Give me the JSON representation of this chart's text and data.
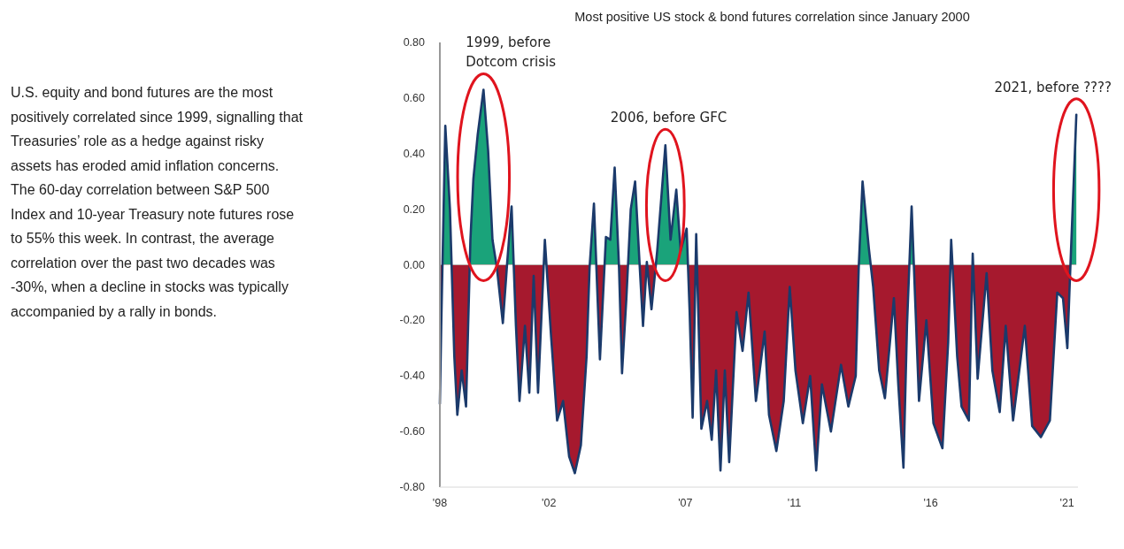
{
  "chart_data": {
    "type": "area",
    "title": "Most positive US stock & bond futures correlation since January 2000",
    "annotations": [
      "U.S. equity and bond futures are the most positively correlated since 1999, signalling that Treasuries’ role as a hedge against risky assets has eroded amid inflation concerns. The 60-day correlation between S&P 500 Index and 10-year Treasury note futures rose to 55% this week. In contrast, the average correlation over the past two decades was -30%, when a decline in stocks was typically accompanied by a rally in bonds.",
      {
        "text": "1999, before\nDotcom crisis",
        "x": 1999.6,
        "y": 0.63
      },
      {
        "text": "2006, before GFC",
        "x": 2006.27,
        "y": 0.43
      },
      {
        "text": "2021, before ????",
        "x": 2021.34,
        "y": 0.54
      }
    ],
    "x": [
      1998.0,
      1998.05,
      1998.2,
      1998.37,
      1998.53,
      1998.64,
      1998.8,
      1998.96,
      1999.12,
      1999.23,
      1999.39,
      1999.6,
      1999.77,
      1999.93,
      2000.09,
      2000.31,
      2000.47,
      2000.63,
      2000.79,
      2000.92,
      2001.12,
      2001.28,
      2001.44,
      2001.6,
      2001.85,
      2002.08,
      2002.3,
      2002.52,
      2002.74,
      2002.95,
      2003.17,
      2003.38,
      2003.49,
      2003.65,
      2003.87,
      2004.09,
      2004.25,
      2004.41,
      2004.57,
      2004.68,
      2004.84,
      2005.0,
      2005.16,
      2005.32,
      2005.45,
      2005.59,
      2005.76,
      2005.97,
      2006.27,
      2006.46,
      2006.67,
      2006.83,
      2007.05,
      2007.16,
      2007.27,
      2007.4,
      2007.59,
      2007.8,
      2007.97,
      2008.13,
      2008.29,
      2008.45,
      2008.61,
      2008.88,
      2009.1,
      2009.32,
      2009.59,
      2009.91,
      2010.07,
      2010.34,
      2010.61,
      2010.83,
      2011.04,
      2011.31,
      2011.58,
      2011.8,
      2012.01,
      2012.34,
      2012.71,
      2012.98,
      2013.25,
      2013.36,
      2013.5,
      2013.73,
      2013.89,
      2014.11,
      2014.32,
      2014.65,
      2014.81,
      2015.0,
      2015.13,
      2015.3,
      2015.57,
      2015.84,
      2016.1,
      2016.43,
      2016.64,
      2016.75,
      2016.97,
      2017.13,
      2017.4,
      2017.54,
      2017.72,
      2018.05,
      2018.26,
      2018.53,
      2018.75,
      2019.02,
      2019.45,
      2019.72,
      2020.04,
      2020.37,
      2020.64,
      2020.85,
      2021.01,
      2021.12,
      2021.34
    ],
    "series": [
      {
        "color": "#1b3a6b",
        "values": [
          -0.5,
          -0.22,
          0.5,
          0.2,
          -0.33,
          -0.54,
          -0.38,
          -0.51,
          0.09,
          0.31,
          0.47,
          0.63,
          0.41,
          0.09,
          -0.01,
          -0.21,
          0.01,
          0.21,
          -0.22,
          -0.49,
          -0.22,
          -0.46,
          -0.04,
          -0.46,
          0.09,
          -0.26,
          -0.56,
          -0.49,
          -0.69,
          -0.75,
          -0.65,
          -0.33,
          -0.01,
          0.22,
          -0.34,
          0.1,
          0.09,
          0.35,
          -0.01,
          -0.39,
          -0.12,
          0.2,
          0.3,
          0.01,
          -0.22,
          0.01,
          -0.16,
          0.05,
          0.43,
          0.09,
          0.27,
          0.05,
          0.13,
          -0.17,
          -0.55,
          0.11,
          -0.59,
          -0.49,
          -0.63,
          -0.38,
          -0.74,
          -0.38,
          -0.71,
          -0.17,
          -0.31,
          -0.1,
          -0.49,
          -0.24,
          -0.54,
          -0.67,
          -0.49,
          -0.08,
          -0.38,
          -0.57,
          -0.4,
          -0.74,
          -0.43,
          -0.6,
          -0.36,
          -0.51,
          -0.4,
          -0.01,
          0.3,
          0.06,
          -0.08,
          -0.38,
          -0.48,
          -0.12,
          -0.43,
          -0.73,
          -0.22,
          0.21,
          -0.49,
          -0.2,
          -0.57,
          -0.66,
          -0.28,
          0.09,
          -0.33,
          -0.51,
          -0.56,
          0.04,
          -0.41,
          -0.03,
          -0.38,
          -0.53,
          -0.22,
          -0.56,
          -0.22,
          -0.58,
          -0.62,
          -0.56,
          -0.1,
          -0.12,
          -0.3,
          -0.01,
          0.54
        ]
      }
    ],
    "xlim": [
      1998,
      2021.4
    ],
    "xticks": [
      {
        "value": 1998,
        "label": "'98"
      },
      {
        "value": 2002,
        "label": "'02"
      },
      {
        "value": 2007,
        "label": "'07"
      },
      {
        "value": 2011,
        "label": "'11"
      },
      {
        "value": 2016,
        "label": "'16"
      },
      {
        "value": 2021,
        "label": "'21"
      }
    ],
    "ylim": [
      -0.8,
      0.8
    ],
    "yticks": [
      {
        "value": -0.8,
        "label": "-0.80"
      },
      {
        "value": -0.6,
        "label": "-0.60"
      },
      {
        "value": -0.4,
        "label": "-0.40"
      },
      {
        "value": -0.2,
        "label": "-0.20"
      },
      {
        "value": 0,
        "label": "0.00"
      },
      {
        "value": 0.2,
        "label": "0.20"
      },
      {
        "value": 0.4,
        "label": "0.40"
      },
      {
        "value": 0.6,
        "label": "0.60"
      },
      {
        "value": 0.8,
        "label": "0.80"
      }
    ],
    "grid": false
  }
}
